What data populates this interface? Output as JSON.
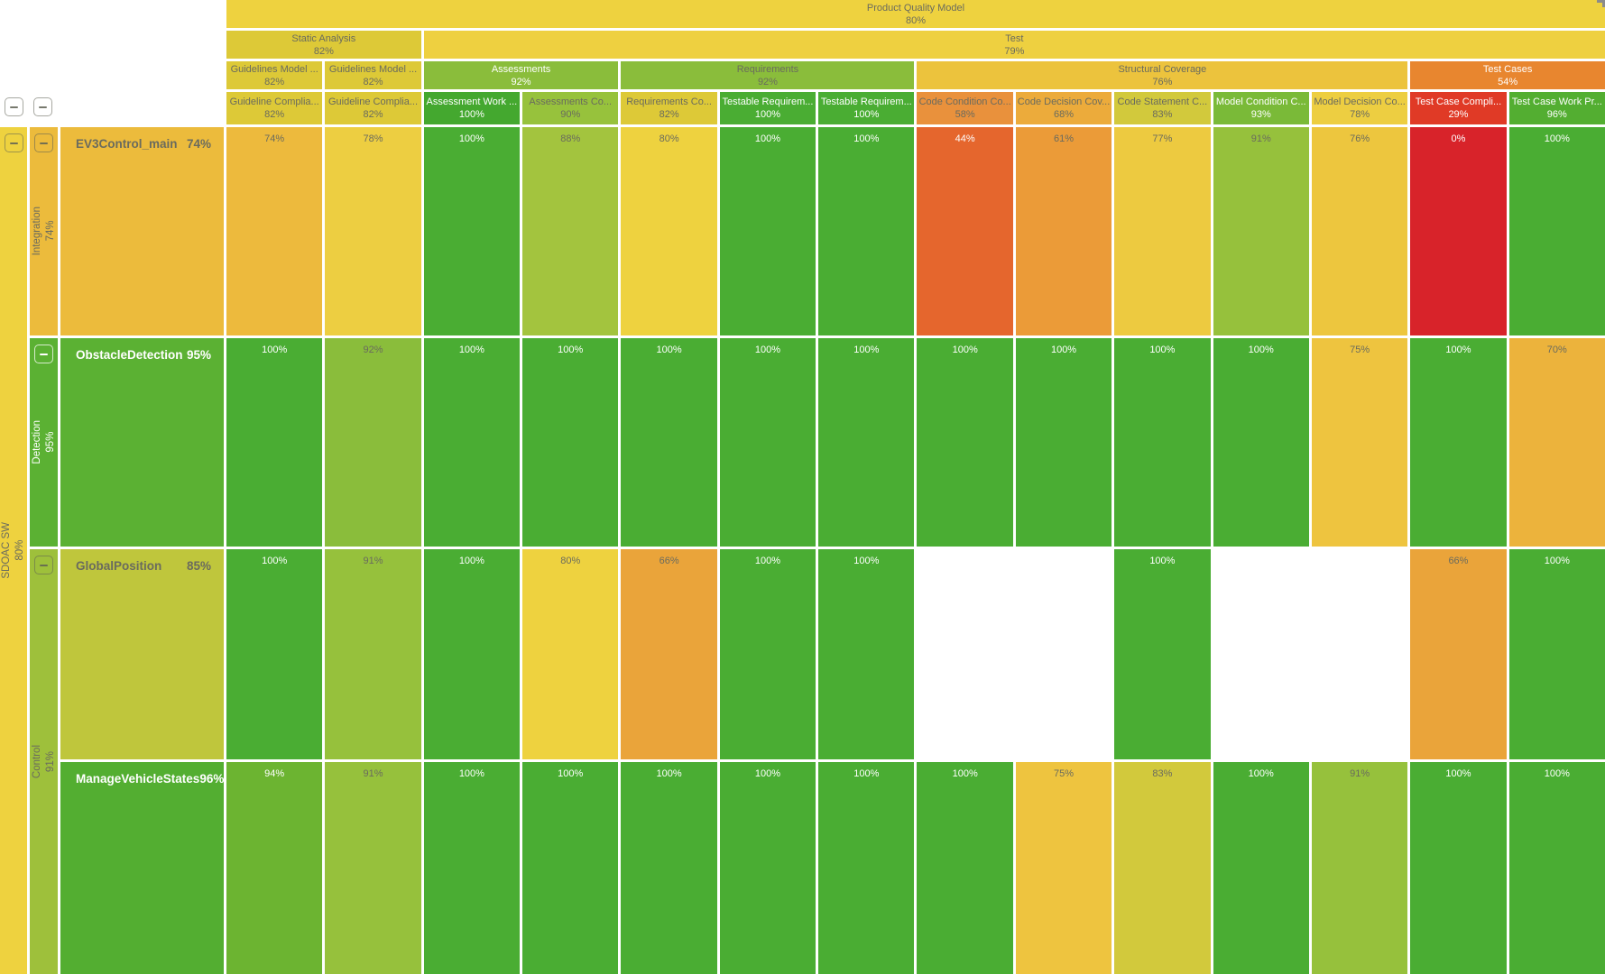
{
  "header": {
    "level1": {
      "label": "Product Quality Model",
      "value": "80%",
      "color": "#eed23f",
      "text": "dark"
    },
    "level2": [
      {
        "label": "Static Analysis",
        "value": "82%",
        "color": "#ddc937",
        "text": "dark",
        "col": 4,
        "span": 2
      },
      {
        "label": "Test",
        "value": "79%",
        "color": "#eed040",
        "text": "dark",
        "col": 6,
        "span": 12
      }
    ],
    "level3": [
      {
        "label": "Guidelines Model ...",
        "value": "82%",
        "color": "#ddc937",
        "text": "dark",
        "col": 4,
        "span": 1
      },
      {
        "label": "Guidelines Model ...",
        "value": "82%",
        "color": "#ddc937",
        "text": "dark",
        "col": 5,
        "span": 1
      },
      {
        "label": "Assessments",
        "value": "92%",
        "color": "#8abd3b",
        "text": "white",
        "col": 6,
        "span": 2
      },
      {
        "label": "Requirements",
        "value": "92%",
        "color": "#8abd3b",
        "text": "dark",
        "col": 8,
        "span": 3
      },
      {
        "label": "Structural Coverage",
        "value": "76%",
        "color": "#ecc33d",
        "text": "dark",
        "col": 11,
        "span": 5
      },
      {
        "label": "Test Cases",
        "value": "54%",
        "color": "#e8862f",
        "text": "white",
        "col": 16,
        "span": 2
      }
    ],
    "columns": [
      {
        "label": "Guideline Complia...",
        "value": "82%",
        "color": "#ddc937",
        "text": "dark"
      },
      {
        "label": "Guideline Complia...",
        "value": "82%",
        "color": "#ddc937",
        "text": "dark"
      },
      {
        "label": "Assessment Work ...",
        "value": "100%",
        "color": "#44a82f",
        "text": "white"
      },
      {
        "label": "Assessments Co...",
        "value": "90%",
        "color": "#97c23c",
        "text": "dark"
      },
      {
        "label": "Requirements Co...",
        "value": "82%",
        "color": "#ddc937",
        "text": "dark"
      },
      {
        "label": "Testable Requirem...",
        "value": "100%",
        "color": "#4aad33",
        "text": "white"
      },
      {
        "label": "Testable Requirem...",
        "value": "100%",
        "color": "#4aad33",
        "text": "white"
      },
      {
        "label": "Code Condition Co...",
        "value": "58%",
        "color": "#e9913c",
        "text": "dark"
      },
      {
        "label": "Code Decision Cov...",
        "value": "68%",
        "color": "#ecab3b",
        "text": "dark"
      },
      {
        "label": "Code Statement C...",
        "value": "83%",
        "color": "#d2c93c",
        "text": "dark"
      },
      {
        "label": "Model Condition C...",
        "value": "93%",
        "color": "#7aba38",
        "text": "white"
      },
      {
        "label": "Model Decision Co...",
        "value": "78%",
        "color": "#edce41",
        "text": "dark"
      },
      {
        "label": "Test Case Compli...",
        "value": "29%",
        "color": "#e03a26",
        "text": "white"
      },
      {
        "label": "Test Case Work Pr...",
        "value": "96%",
        "color": "#53ae31",
        "text": "white"
      }
    ]
  },
  "tree": {
    "root": {
      "label": "SDOAC SW",
      "value": "80%",
      "color": "#eed23f",
      "text": "dark",
      "button": "dark"
    },
    "groups": [
      {
        "label": "Integration",
        "value": "74%",
        "color": "#ecbb3c",
        "text": "dark",
        "row": 5,
        "span": 1,
        "button": "dark"
      },
      {
        "label": "Detection",
        "value": "95%",
        "color": "#5bb133",
        "text": "white",
        "row": 6,
        "span": 1,
        "button": "light"
      },
      {
        "label": "Control",
        "value": "91%",
        "color": "#9ec03b",
        "text": "dark",
        "row": 7,
        "span": 2,
        "button": "dark"
      }
    ],
    "rows": [
      {
        "label": "EV3Control_main",
        "value": "74%",
        "color": "#ecbb3c",
        "text": "dark",
        "cells": [
          {
            "v": "74%",
            "c": "#edba3d",
            "t": "dark"
          },
          {
            "v": "78%",
            "c": "#edce41",
            "t": "dark"
          },
          {
            "v": "100%",
            "c": "#4aad33",
            "t": "white"
          },
          {
            "v": "88%",
            "c": "#a3c43e",
            "t": "dark"
          },
          {
            "v": "80%",
            "c": "#eed23f",
            "t": "dark"
          },
          {
            "v": "100%",
            "c": "#4aad33",
            "t": "white"
          },
          {
            "v": "100%",
            "c": "#4aad33",
            "t": "white"
          },
          {
            "v": "44%",
            "c": "#e5662d",
            "t": "white"
          },
          {
            "v": "61%",
            "c": "#eb9b38",
            "t": "dark"
          },
          {
            "v": "77%",
            "c": "#edca40",
            "t": "dark"
          },
          {
            "v": "91%",
            "c": "#96c13c",
            "t": "dark"
          },
          {
            "v": "76%",
            "c": "#edc63e",
            "t": "dark"
          },
          {
            "v": "0%",
            "c": "#d8232a",
            "t": "white"
          },
          {
            "v": "100%",
            "c": "#4aad33",
            "t": "white"
          }
        ]
      },
      {
        "label": "ObstacleDetection",
        "value": "95%",
        "color": "#5bb133",
        "text": "white",
        "cells": [
          {
            "v": "100%",
            "c": "#4aad33",
            "t": "white"
          },
          {
            "v": "92%",
            "c": "#8abd3b",
            "t": "dark"
          },
          {
            "v": "100%",
            "c": "#4aad33",
            "t": "white"
          },
          {
            "v": "100%",
            "c": "#4aad33",
            "t": "white"
          },
          {
            "v": "100%",
            "c": "#4aad33",
            "t": "white"
          },
          {
            "v": "100%",
            "c": "#4aad33",
            "t": "white"
          },
          {
            "v": "100%",
            "c": "#4aad33",
            "t": "white"
          },
          {
            "v": "100%",
            "c": "#4aad33",
            "t": "white"
          },
          {
            "v": "100%",
            "c": "#4aad33",
            "t": "white"
          },
          {
            "v": "100%",
            "c": "#4aad33",
            "t": "white"
          },
          {
            "v": "100%",
            "c": "#4aad33",
            "t": "white"
          },
          {
            "v": "75%",
            "c": "#eec43f",
            "t": "dark"
          },
          {
            "v": "100%",
            "c": "#4aad33",
            "t": "white"
          },
          {
            "v": "70%",
            "c": "#ecb33c",
            "t": "dark"
          }
        ]
      },
      {
        "label": "GlobalPosition",
        "value": "85%",
        "color": "#bfc63c",
        "text": "dark",
        "cells": [
          {
            "v": "100%",
            "c": "#4aad33",
            "t": "white"
          },
          {
            "v": "91%",
            "c": "#96c13c",
            "t": "dark"
          },
          {
            "v": "100%",
            "c": "#4aad33",
            "t": "white"
          },
          {
            "v": "80%",
            "c": "#eed23f",
            "t": "dark"
          },
          {
            "v": "66%",
            "c": "#eaa43a",
            "t": "dark"
          },
          {
            "v": "100%",
            "c": "#4aad33",
            "t": "white"
          },
          {
            "v": "100%",
            "c": "#4aad33",
            "t": "white"
          },
          {
            "v": null
          },
          {
            "v": null
          },
          {
            "v": "100%",
            "c": "#4aad33",
            "t": "white"
          },
          {
            "v": null
          },
          {
            "v": null
          },
          {
            "v": "66%",
            "c": "#eaa43a",
            "t": "dark"
          },
          {
            "v": "100%",
            "c": "#4aad33",
            "t": "white"
          }
        ]
      },
      {
        "label": "ManageVehicleStates",
        "value": "96%",
        "color": "#53ae31",
        "text": "white",
        "cells": [
          {
            "v": "94%",
            "c": "#6cb431",
            "t": "white"
          },
          {
            "v": "91%",
            "c": "#96c13c",
            "t": "dark"
          },
          {
            "v": "100%",
            "c": "#4aad33",
            "t": "white"
          },
          {
            "v": "100%",
            "c": "#4aad33",
            "t": "white"
          },
          {
            "v": "100%",
            "c": "#4aad33",
            "t": "white"
          },
          {
            "v": "100%",
            "c": "#4aad33",
            "t": "white"
          },
          {
            "v": "100%",
            "c": "#4aad33",
            "t": "white"
          },
          {
            "v": "100%",
            "c": "#4aad33",
            "t": "white"
          },
          {
            "v": "75%",
            "c": "#eec43f",
            "t": "dark"
          },
          {
            "v": "83%",
            "c": "#d2c93c",
            "t": "dark"
          },
          {
            "v": "100%",
            "c": "#4aad33",
            "t": "white"
          },
          {
            "v": "91%",
            "c": "#96c13c",
            "t": "dark"
          },
          {
            "v": "100%",
            "c": "#4aad33",
            "t": "white"
          },
          {
            "v": "100%",
            "c": "#4aad33",
            "t": "white"
          }
        ]
      }
    ]
  }
}
